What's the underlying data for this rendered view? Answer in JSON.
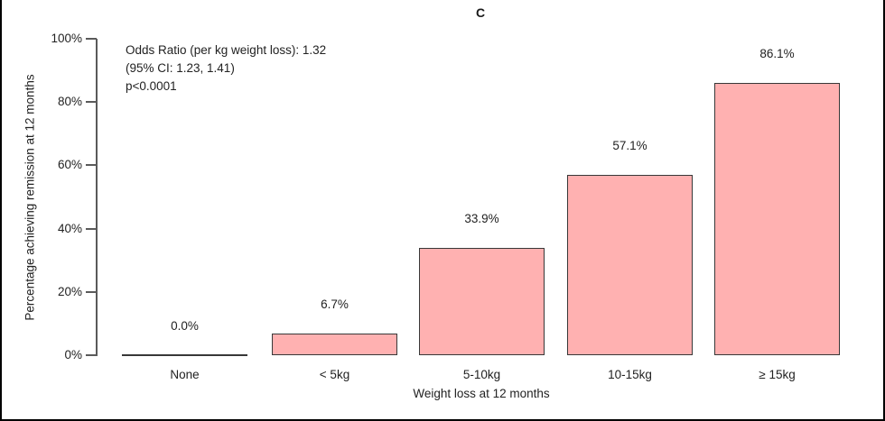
{
  "panel_label": "C",
  "annotation": {
    "line1": "Odds Ratio (per kg weight loss): 1.32",
    "line2": "(95% CI: 1.23, 1.41)",
    "line3": "p<0.0001"
  },
  "chart_data": {
    "type": "bar",
    "title": "C",
    "categories": [
      "None",
      "< 5kg",
      "5-10kg",
      "10-15kg",
      "≥ 15kg"
    ],
    "values": [
      0.0,
      6.7,
      33.9,
      57.1,
      86.1
    ],
    "value_labels": [
      "0.0%",
      "6.7%",
      "33.9%",
      "57.1%",
      "86.1%"
    ],
    "xlabel": "Weight loss at 12 months",
    "ylabel": "Percentage achieving remission at 12 months",
    "ylim": [
      0,
      100
    ],
    "ytick_values": [
      0,
      20,
      40,
      60,
      80,
      100
    ],
    "ytick_labels": [
      "0%",
      "20%",
      "40%",
      "60%",
      "80%",
      "100%"
    ],
    "grid": false,
    "legend": null,
    "bar_fill_color": "#ffb1b1",
    "bar_border_color": "#383838",
    "annotation_lines": [
      "Odds Ratio (per kg weight loss): 1.32",
      "(95% CI: 1.23, 1.41)",
      "p<0.0001"
    ]
  }
}
